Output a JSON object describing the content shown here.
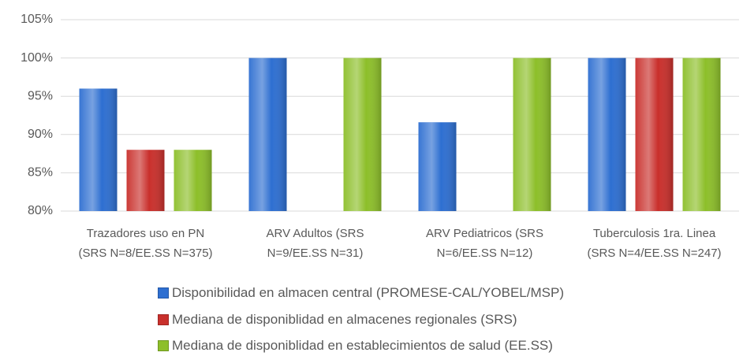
{
  "chart_data": {
    "type": "bar",
    "categories": [
      "Trazadores uso en PN\n(SRS N=8/EE.SS N=375)",
      "ARV Adultos (SRS\nN=9/EE.SS N=31)",
      "ARV Pediatricos (SRS\nN=6/EE.SS N=12)",
      "Tuberculosis 1ra. Linea\n(SRS N=4/EE.SS N=247)"
    ],
    "series": [
      {
        "name": "Disponibilidad en almacen central (PROMESE-CAL/YOBEL/MSP)",
        "color": "#2e6fd1",
        "values": [
          96,
          100,
          91.6,
          100
        ]
      },
      {
        "name": "Mediana de disponiblidad en almacenes regionales (SRS)",
        "color": "#c9302c",
        "values": [
          88,
          null,
          null,
          100
        ]
      },
      {
        "name": "Mediana de disponiblidad en establecimientos de salud (EE.SS)",
        "color": "#8dbf2a",
        "values": [
          88,
          100,
          100,
          100
        ]
      }
    ],
    "ylim": [
      80,
      105
    ],
    "yticks": [
      {
        "value": 80,
        "label": "80%"
      },
      {
        "value": 85,
        "label": "85%"
      },
      {
        "value": 90,
        "label": "90%"
      },
      {
        "value": 95,
        "label": "95%"
      },
      {
        "value": 100,
        "label": "100%"
      },
      {
        "value": 105,
        "label": "105%"
      }
    ],
    "grid": true
  }
}
